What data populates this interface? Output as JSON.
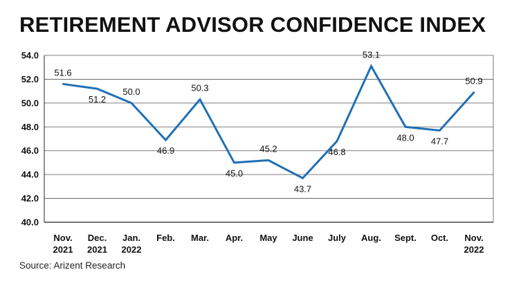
{
  "chart_data": {
    "type": "line",
    "title": "RETIREMENT ADVISOR CONFIDENCE INDEX",
    "source": "Source: Arizent Research",
    "xlabel": "",
    "ylabel": "",
    "ylim": [
      40.0,
      54.0
    ],
    "yticks": [
      "54.0",
      "52.0",
      "50.0",
      "48.0",
      "46.0",
      "44.0",
      "42.0",
      "40.0"
    ],
    "ytick_values": [
      54,
      52,
      50,
      48,
      46,
      44,
      42,
      40
    ],
    "grid": true,
    "line_color": "#1f6fb5",
    "categories": [
      [
        "Nov.",
        "2021"
      ],
      [
        "Dec.",
        "2021"
      ],
      [
        "Jan.",
        "2022"
      ],
      [
        "Feb."
      ],
      [
        "Mar."
      ],
      [
        "Apr."
      ],
      [
        "May"
      ],
      [
        "June"
      ],
      [
        "July"
      ],
      [
        "Aug."
      ],
      [
        "Sept."
      ],
      [
        "Oct."
      ],
      [
        "Nov.",
        "2022"
      ]
    ],
    "values": [
      51.6,
      51.2,
      50.0,
      46.9,
      50.3,
      45.0,
      45.2,
      43.7,
      46.8,
      53.1,
      48.0,
      47.7,
      50.9
    ],
    "value_labels": [
      "51.6",
      "51.2",
      "50.0",
      "46.9",
      "50.3",
      "45.0",
      "45.2",
      "43.7",
      "46.8",
      "53.1",
      "48.0",
      "47.7",
      "50.9"
    ],
    "label_positions": [
      "above",
      "below",
      "above",
      "below",
      "above",
      "below",
      "above",
      "below",
      "below",
      "above",
      "below",
      "below",
      "above"
    ]
  }
}
